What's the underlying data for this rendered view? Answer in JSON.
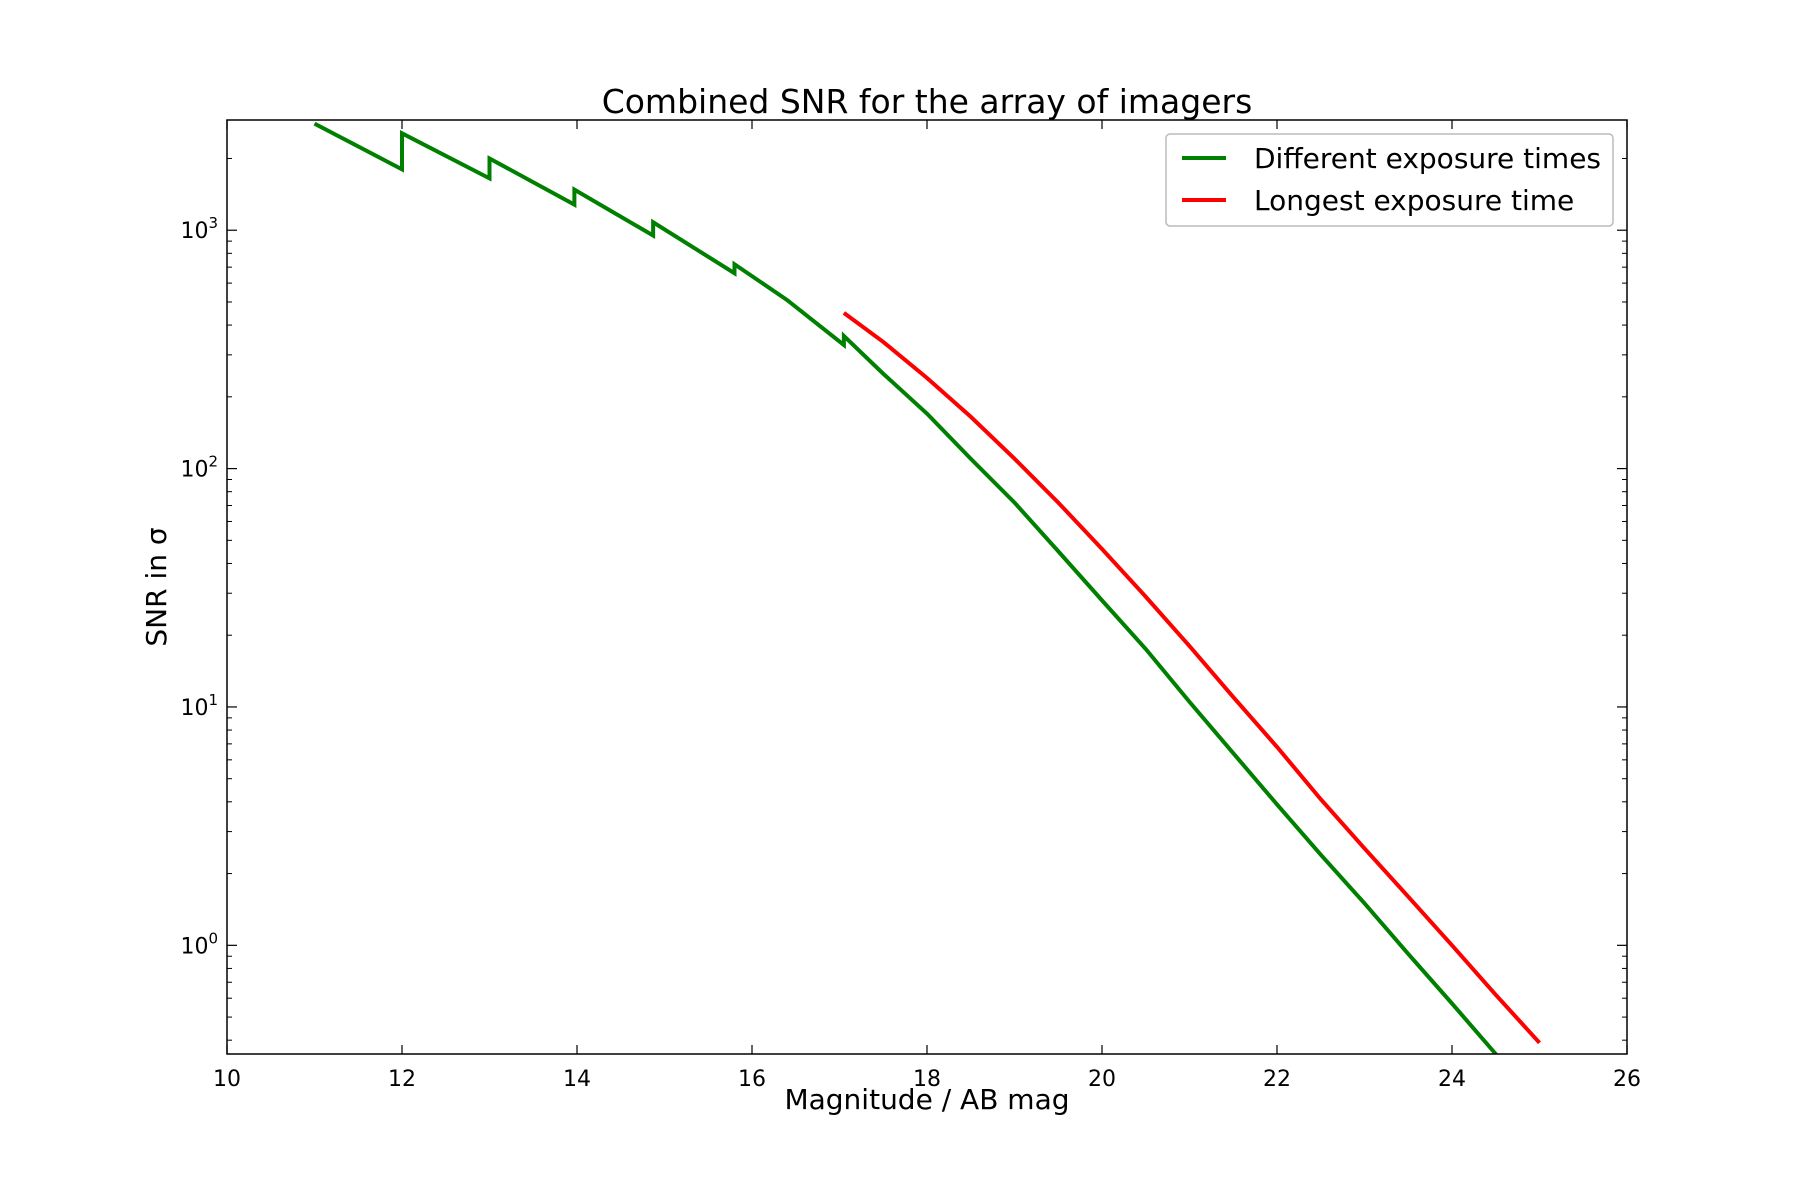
{
  "chart_data": {
    "type": "line",
    "title": "Combined SNR for the array of imagers",
    "xlabel": "Magnitude / AB mag",
    "ylabel": "SNR in σ",
    "xlim": [
      10,
      26
    ],
    "ylim": [
      0.35,
      2900
    ],
    "yscale": "log",
    "grid": false,
    "legend_position": "top-right",
    "x_ticks": [
      10,
      12,
      14,
      16,
      18,
      20,
      22,
      24,
      26
    ],
    "x_tick_labels": [
      "10",
      "12",
      "14",
      "16",
      "18",
      "20",
      "22",
      "24",
      "26"
    ],
    "y_ticks": [
      1,
      10,
      100,
      1000
    ],
    "y_tick_labels": [
      {
        "base": "10",
        "exp": "0"
      },
      {
        "base": "10",
        "exp": "1"
      },
      {
        "base": "10",
        "exp": "2"
      },
      {
        "base": "10",
        "exp": "3"
      }
    ],
    "series": [
      {
        "name": "Different exposure times",
        "color": "#008000",
        "x": [
          11.0,
          12.0,
          12.0,
          13.0,
          13.0,
          13.97,
          13.97,
          14.87,
          14.87,
          15.8,
          15.8,
          16.4,
          17.05,
          17.05,
          17.5,
          18.0,
          18.5,
          19.0,
          19.5,
          20.0,
          20.5,
          21.0,
          21.5,
          22.0,
          22.5,
          23.0,
          23.5,
          24.0,
          24.5,
          25.0
        ],
        "y": [
          2800,
          1800,
          2550,
          1650,
          2000,
          1280,
          1480,
          950,
          1080,
          660,
          720,
          510,
          330,
          360,
          250,
          170,
          110,
          72,
          45,
          28,
          17.5,
          10.5,
          6.4,
          3.9,
          2.4,
          1.5,
          0.92,
          0.57,
          0.35,
          0.215
        ]
      },
      {
        "name": "Longest exposure time",
        "color": "#ff0000",
        "x": [
          17.05,
          17.5,
          18.0,
          18.5,
          19.0,
          19.5,
          20.0,
          20.5,
          21.0,
          21.5,
          22.0,
          22.5,
          23.0,
          23.5,
          24.0,
          24.5,
          25.0
        ],
        "y": [
          450,
          340,
          240,
          165,
          110,
          72,
          46,
          29,
          18,
          11,
          6.8,
          4.1,
          2.55,
          1.6,
          1.0,
          0.62,
          0.39
        ]
      }
    ]
  }
}
